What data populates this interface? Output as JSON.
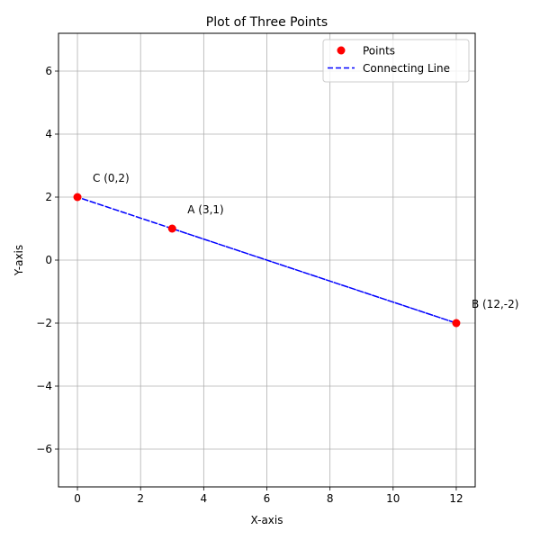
{
  "chart_data": {
    "type": "scatter",
    "title": "Plot of Three Points",
    "xlabel": "X-axis",
    "ylabel": "Y-axis",
    "xlim": [
      -0.6,
      12.6
    ],
    "ylim": [
      -7.2,
      7.2
    ],
    "xticks": [
      0,
      2,
      4,
      6,
      8,
      10,
      12
    ],
    "yticks": [
      -6,
      -4,
      -2,
      0,
      2,
      4,
      6
    ],
    "grid": true,
    "legend_position": "top-right",
    "points": [
      {
        "label": "A (3,1)",
        "x": 3,
        "y": 1
      },
      {
        "label": "B (12,-2)",
        "x": 12,
        "y": -2
      },
      {
        "label": "C (0,2)",
        "x": 0,
        "y": 2
      }
    ],
    "series": [
      {
        "name": "Points",
        "style": "markers",
        "color": "#ff0000",
        "x": [
          3,
          12,
          0
        ],
        "y": [
          1,
          -2,
          2
        ]
      },
      {
        "name": "Connecting Line",
        "style": "dashed",
        "color": "#0000ff",
        "x": [
          3,
          12,
          0,
          3
        ],
        "y": [
          1,
          -2,
          2,
          1
        ]
      }
    ]
  }
}
